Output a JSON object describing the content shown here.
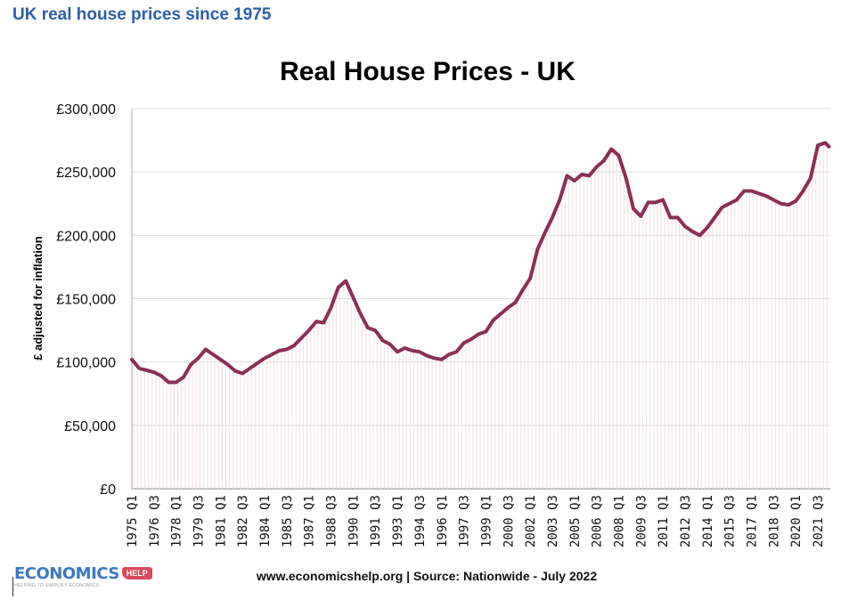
{
  "page": {
    "heading": "UK real house prices since 1975"
  },
  "logo": {
    "name": "ECONOMICS",
    "tag": "HELP",
    "tagline": "HELPING TO SIMPLIFY ECONOMICS"
  },
  "footer": {
    "source": "www.economicshelp.org | Source: Nationwide - July 2022"
  },
  "chart_data": {
    "type": "line",
    "title": "Real House Prices - UK",
    "xlabel": "",
    "ylabel": "£ adjusted for inflation",
    "ylim": [
      0,
      300000
    ],
    "yticks": [
      "£0",
      "£50,000",
      "£100,000",
      "£150,000",
      "£200,000",
      "£250,000",
      "£300,000"
    ],
    "grid": true,
    "line_color": "#8b2f55",
    "xtick_labels": [
      "1975 Q1",
      "1976 Q3",
      "1978 Q1",
      "1979 Q3",
      "1981 Q1",
      "1982 Q3",
      "1984 Q1",
      "1985 Q3",
      "1987 Q1",
      "1988 Q3",
      "1990 Q1",
      "1991 Q3",
      "1993 Q1",
      "1994 Q3",
      "1996 Q1",
      "1997 Q3",
      "1999 Q1",
      "2000 Q3",
      "2002 Q1",
      "2003 Q3",
      "2005 Q1",
      "2006 Q3",
      "2008 Q1",
      "2009 Q3",
      "2011 Q1",
      "2012 Q3",
      "2014 Q1",
      "2015 Q3",
      "2017 Q1",
      "2018 Q3",
      "2020 Q1",
      "2021 Q3"
    ],
    "x": [
      "1975 Q1",
      "1975 Q3",
      "1976 Q3",
      "1977 Q1",
      "1977 Q3",
      "1978 Q1",
      "1978 Q3",
      "1979 Q1",
      "1979 Q3",
      "1980 Q1",
      "1980 Q3",
      "1981 Q1",
      "1981 Q3",
      "1982 Q1",
      "1982 Q3",
      "1983 Q1",
      "1983 Q3",
      "1984 Q1",
      "1984 Q3",
      "1985 Q1",
      "1985 Q3",
      "1986 Q1",
      "1986 Q3",
      "1987 Q1",
      "1987 Q3",
      "1988 Q1",
      "1988 Q3",
      "1989 Q1",
      "1989 Q3",
      "1990 Q1",
      "1990 Q3",
      "1991 Q1",
      "1991 Q3",
      "1992 Q1",
      "1992 Q3",
      "1993 Q1",
      "1993 Q3",
      "1994 Q1",
      "1994 Q3",
      "1995 Q1",
      "1995 Q3",
      "1996 Q1",
      "1996 Q3",
      "1997 Q1",
      "1997 Q3",
      "1998 Q1",
      "1998 Q3",
      "1999 Q1",
      "1999 Q3",
      "2000 Q1",
      "2000 Q3",
      "2001 Q1",
      "2001 Q3",
      "2002 Q1",
      "2002 Q3",
      "2003 Q1",
      "2003 Q3",
      "2004 Q1",
      "2004 Q3",
      "2005 Q1",
      "2005 Q3",
      "2006 Q1",
      "2006 Q3",
      "2007 Q1",
      "2007 Q3",
      "2008 Q1",
      "2008 Q3",
      "2009 Q1",
      "2009 Q3",
      "2010 Q1",
      "2010 Q3",
      "2011 Q1",
      "2011 Q3",
      "2012 Q1",
      "2012 Q3",
      "2013 Q1",
      "2013 Q3",
      "2014 Q1",
      "2014 Q3",
      "2015 Q1",
      "2015 Q3",
      "2016 Q1",
      "2016 Q3",
      "2017 Q1",
      "2017 Q3",
      "2018 Q1",
      "2018 Q3",
      "2019 Q1",
      "2019 Q3",
      "2020 Q1",
      "2020 Q3",
      "2021 Q1",
      "2021 Q3",
      "2022 Q1",
      "2022 Q2"
    ],
    "values": [
      102000,
      95000,
      92000,
      89000,
      84000,
      84000,
      88000,
      98000,
      103000,
      110000,
      106000,
      102000,
      98000,
      93000,
      91000,
      95000,
      99000,
      103000,
      106000,
      109000,
      110000,
      113000,
      119000,
      125000,
      132000,
      131000,
      143000,
      159000,
      164000,
      151000,
      138000,
      127000,
      125000,
      117000,
      114000,
      108000,
      111000,
      109000,
      108000,
      105000,
      103000,
      102000,
      106000,
      108000,
      115000,
      118000,
      122000,
      124000,
      133000,
      138000,
      143000,
      147000,
      157000,
      166000,
      189000,
      202000,
      214000,
      228000,
      247000,
      243000,
      248000,
      247000,
      254000,
      259000,
      268000,
      263000,
      245000,
      221000,
      215000,
      226000,
      226000,
      228000,
      214000,
      214000,
      207000,
      203000,
      200000,
      206000,
      214000,
      222000,
      225000,
      228000,
      235000,
      235000,
      233000,
      231000,
      228000,
      225000,
      224000,
      227000,
      235000,
      245000,
      271000,
      273000,
      270000
    ]
  }
}
